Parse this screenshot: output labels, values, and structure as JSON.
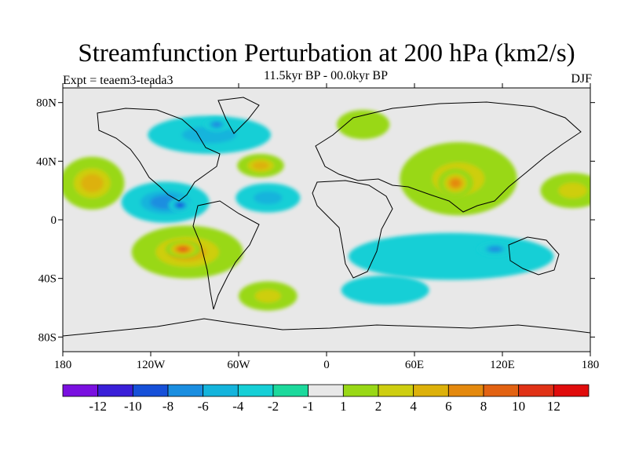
{
  "header": {
    "title": "Streamfunction Perturbation at 200 hPa (km2/s)",
    "subtitle": "11.5kyr BP - 00.0kyr BP",
    "left_label": "Expt = teaem3-teada3",
    "right_label": "DJF"
  },
  "chart_data": {
    "type": "heatmap",
    "projection": "cylindrical equidistant",
    "title": "Streamfunction Perturbation at 200 hPa (km2/s)",
    "subtitle": "11.5kyr BP - 00.0kyr BP",
    "xlim": [
      -180,
      180
    ],
    "ylim": [
      -90,
      90
    ],
    "x_ticks": [
      {
        "value": -180,
        "label": "180"
      },
      {
        "value": -120,
        "label": "120W"
      },
      {
        "value": -60,
        "label": "60W"
      },
      {
        "value": 0,
        "label": "0"
      },
      {
        "value": 60,
        "label": "60E"
      },
      {
        "value": 120,
        "label": "120E"
      },
      {
        "value": 180,
        "label": "180"
      }
    ],
    "y_ticks": [
      {
        "value": 80,
        "label": "80N"
      },
      {
        "value": 40,
        "label": "40N"
      },
      {
        "value": 0,
        "label": "0"
      },
      {
        "value": -40,
        "label": "40S"
      },
      {
        "value": -80,
        "label": "80S"
      }
    ],
    "colorbar": {
      "colors": [
        "#7a10e0",
        "#3a1fd8",
        "#1650d8",
        "#1a8ee0",
        "#14b4dc",
        "#16cfd6",
        "#1cd99c",
        "#e8e8e8",
        "#99d816",
        "#cece10",
        "#ddb10a",
        "#e4890e",
        "#e26212",
        "#e03216",
        "#e00c0c"
      ],
      "labels": [
        "-12",
        "-10",
        "-8",
        "-6",
        "-4",
        "-2",
        "-1",
        "1",
        "2",
        "4",
        "6",
        "8",
        "10",
        "12"
      ]
    },
    "regions": [
      {
        "lon": -160,
        "lat": 25,
        "rx": 22,
        "ry": 18,
        "level": 6
      },
      {
        "lon": -110,
        "lat": 12,
        "rx": 30,
        "ry": 14,
        "level": -6
      },
      {
        "lon": -100,
        "lat": 10,
        "rx": 8,
        "ry": 5,
        "level": -8
      },
      {
        "lon": -40,
        "lat": 15,
        "rx": 22,
        "ry": 10,
        "level": -4
      },
      {
        "lon": -95,
        "lat": -22,
        "rx": 38,
        "ry": 18,
        "level": 6
      },
      {
        "lon": -98,
        "lat": -20,
        "rx": 12,
        "ry": 6,
        "level": 10
      },
      {
        "lon": -45,
        "lat": 37,
        "rx": 16,
        "ry": 8,
        "level": 6
      },
      {
        "lon": -80,
        "lat": 58,
        "rx": 42,
        "ry": 13,
        "level": -4
      },
      {
        "lon": -75,
        "lat": 65,
        "rx": 9,
        "ry": 5,
        "level": -6
      },
      {
        "lon": 25,
        "lat": 65,
        "rx": 18,
        "ry": 10,
        "level": 2
      },
      {
        "lon": 90,
        "lat": 28,
        "rx": 40,
        "ry": 25,
        "level": 4
      },
      {
        "lon": 88,
        "lat": 25,
        "rx": 12,
        "ry": 10,
        "level": 8
      },
      {
        "lon": 168,
        "lat": 20,
        "rx": 22,
        "ry": 12,
        "level": 4
      },
      {
        "lon": 85,
        "lat": -25,
        "rx": 70,
        "ry": 16,
        "level": -2
      },
      {
        "lon": 115,
        "lat": -20,
        "rx": 12,
        "ry": 5,
        "level": -6
      },
      {
        "lon": -40,
        "lat": -52,
        "rx": 20,
        "ry": 10,
        "level": 4
      },
      {
        "lon": 40,
        "lat": -48,
        "rx": 30,
        "ry": 10,
        "level": -2
      }
    ]
  }
}
